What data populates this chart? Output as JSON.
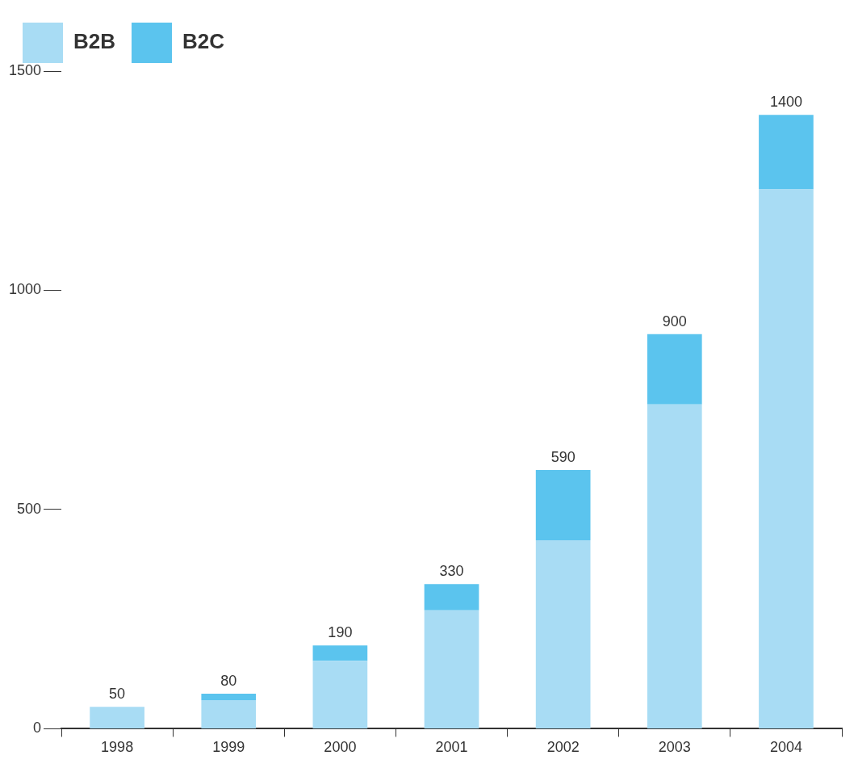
{
  "chart_data": {
    "type": "bar",
    "stacked": true,
    "categories": [
      "1998",
      "1999",
      "2000",
      "2001",
      "2002",
      "2003",
      "2004"
    ],
    "series": [
      {
        "name": "B2B",
        "color": "#a8dcf4",
        "values": [
          50,
          65,
          155,
          270,
          430,
          740,
          1230
        ]
      },
      {
        "name": "B2C",
        "color": "#5bc4ee",
        "values": [
          0,
          15,
          35,
          60,
          160,
          160,
          170
        ]
      }
    ],
    "totals": [
      "50",
      "80",
      "190",
      "330",
      "590",
      "900",
      "1400"
    ],
    "ylim": [
      0,
      1500
    ],
    "yticks": [
      0,
      500,
      1000,
      1500
    ],
    "grid": false,
    "legend": "top left"
  }
}
